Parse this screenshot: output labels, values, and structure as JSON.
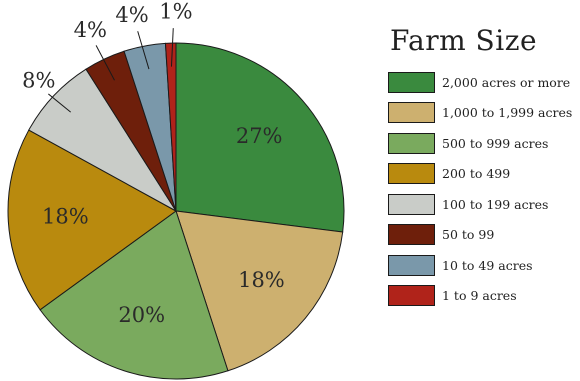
{
  "chart_data": {
    "type": "pie",
    "title": "Farm Size",
    "legend_position": "right",
    "slices": [
      {
        "label": "2,000 acres or more",
        "value": 27,
        "value_label": "27%",
        "color": "#3a8a3e",
        "label_color": "#ffffff"
      },
      {
        "label": "1,000 to 1,999 acres",
        "value": 18,
        "value_label": "18%",
        "color": "#cdb06f",
        "label_color": "#2a2a2a"
      },
      {
        "label": "500 to 999 acres",
        "value": 20,
        "value_label": "20%",
        "color": "#7aaa5e",
        "label_color": "#2a2a2a"
      },
      {
        "label": "200 to 499",
        "value": 18,
        "value_label": "18%",
        "color": "#b98a0e",
        "label_color": "#2a2a2a"
      },
      {
        "label": "100 to 199 acres",
        "value": 8,
        "value_label": "8%",
        "color": "#c9ccc8",
        "label_color": "#2a2a2a"
      },
      {
        "label": "50 to 99",
        "value": 4,
        "value_label": "4%",
        "color": "#6e1f0b",
        "label_color": "#2a2a2a"
      },
      {
        "label": "10 to 49 acres",
        "value": 4,
        "value_label": "4%",
        "color": "#7a98aa",
        "label_color": "#2a2a2a"
      },
      {
        "label": "1 to 9 acres",
        "value": 1,
        "value_label": "1%",
        "color": "#b0231a",
        "label_color": "#2a2a2a"
      }
    ]
  }
}
